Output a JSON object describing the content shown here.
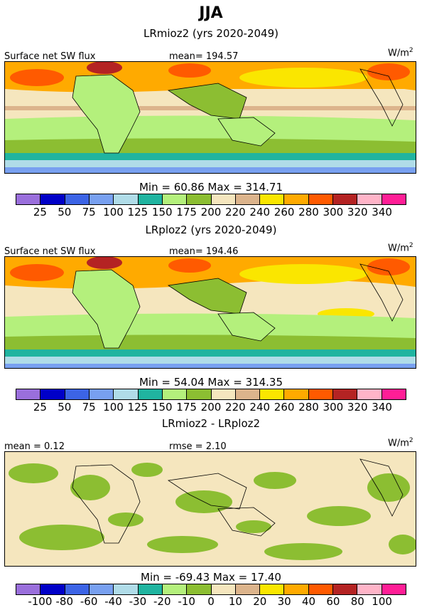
{
  "title": "JJA",
  "panels": [
    {
      "title": "LRmioz2 (yrs 2020-2049)",
      "left_label": "Surface net SW flux",
      "center_label": "mean= 194.57",
      "units": "W/m",
      "units_sup": "2",
      "min_max": "Min =   60.86 Max = 314.71"
    },
    {
      "title": "LRploz2 (yrs 2020-2049)",
      "left_label": "Surface net SW flux",
      "center_label": "mean= 194.46",
      "units": "W/m",
      "units_sup": "2",
      "min_max": "Min =   54.04 Max = 314.35"
    },
    {
      "title": "LRmioz2 - LRploz2",
      "left_label": "mean =   0.12",
      "center_label": "rmse =   2.10",
      "units": "W/m",
      "units_sup": "2",
      "min_max": "Min = -69.43 Max =   17.40"
    }
  ],
  "colorbar_colors": [
    "#9a6fdc",
    "#0000c8",
    "#3c64e6",
    "#78a0f0",
    "#b0dce8",
    "#20b4a0",
    "#b4f07c",
    "#8cbe32",
    "#f5e6be",
    "#dcb48c",
    "#fae600",
    "#ffaa00",
    "#ff5a00",
    "#b42323",
    "#ffb4c8",
    "#ff1e96"
  ],
  "colorbar_labels_abs": [
    "25",
    "50",
    "75",
    "100",
    "125",
    "150",
    "175",
    "200",
    "220",
    "240",
    "260",
    "280",
    "300",
    "320",
    "340"
  ],
  "colorbar_labels_diff": [
    "-100",
    "-80",
    "-60",
    "-40",
    "-30",
    "-20",
    "-10",
    "0",
    "10",
    "20",
    "30",
    "40",
    "60",
    "80",
    "100"
  ]
}
